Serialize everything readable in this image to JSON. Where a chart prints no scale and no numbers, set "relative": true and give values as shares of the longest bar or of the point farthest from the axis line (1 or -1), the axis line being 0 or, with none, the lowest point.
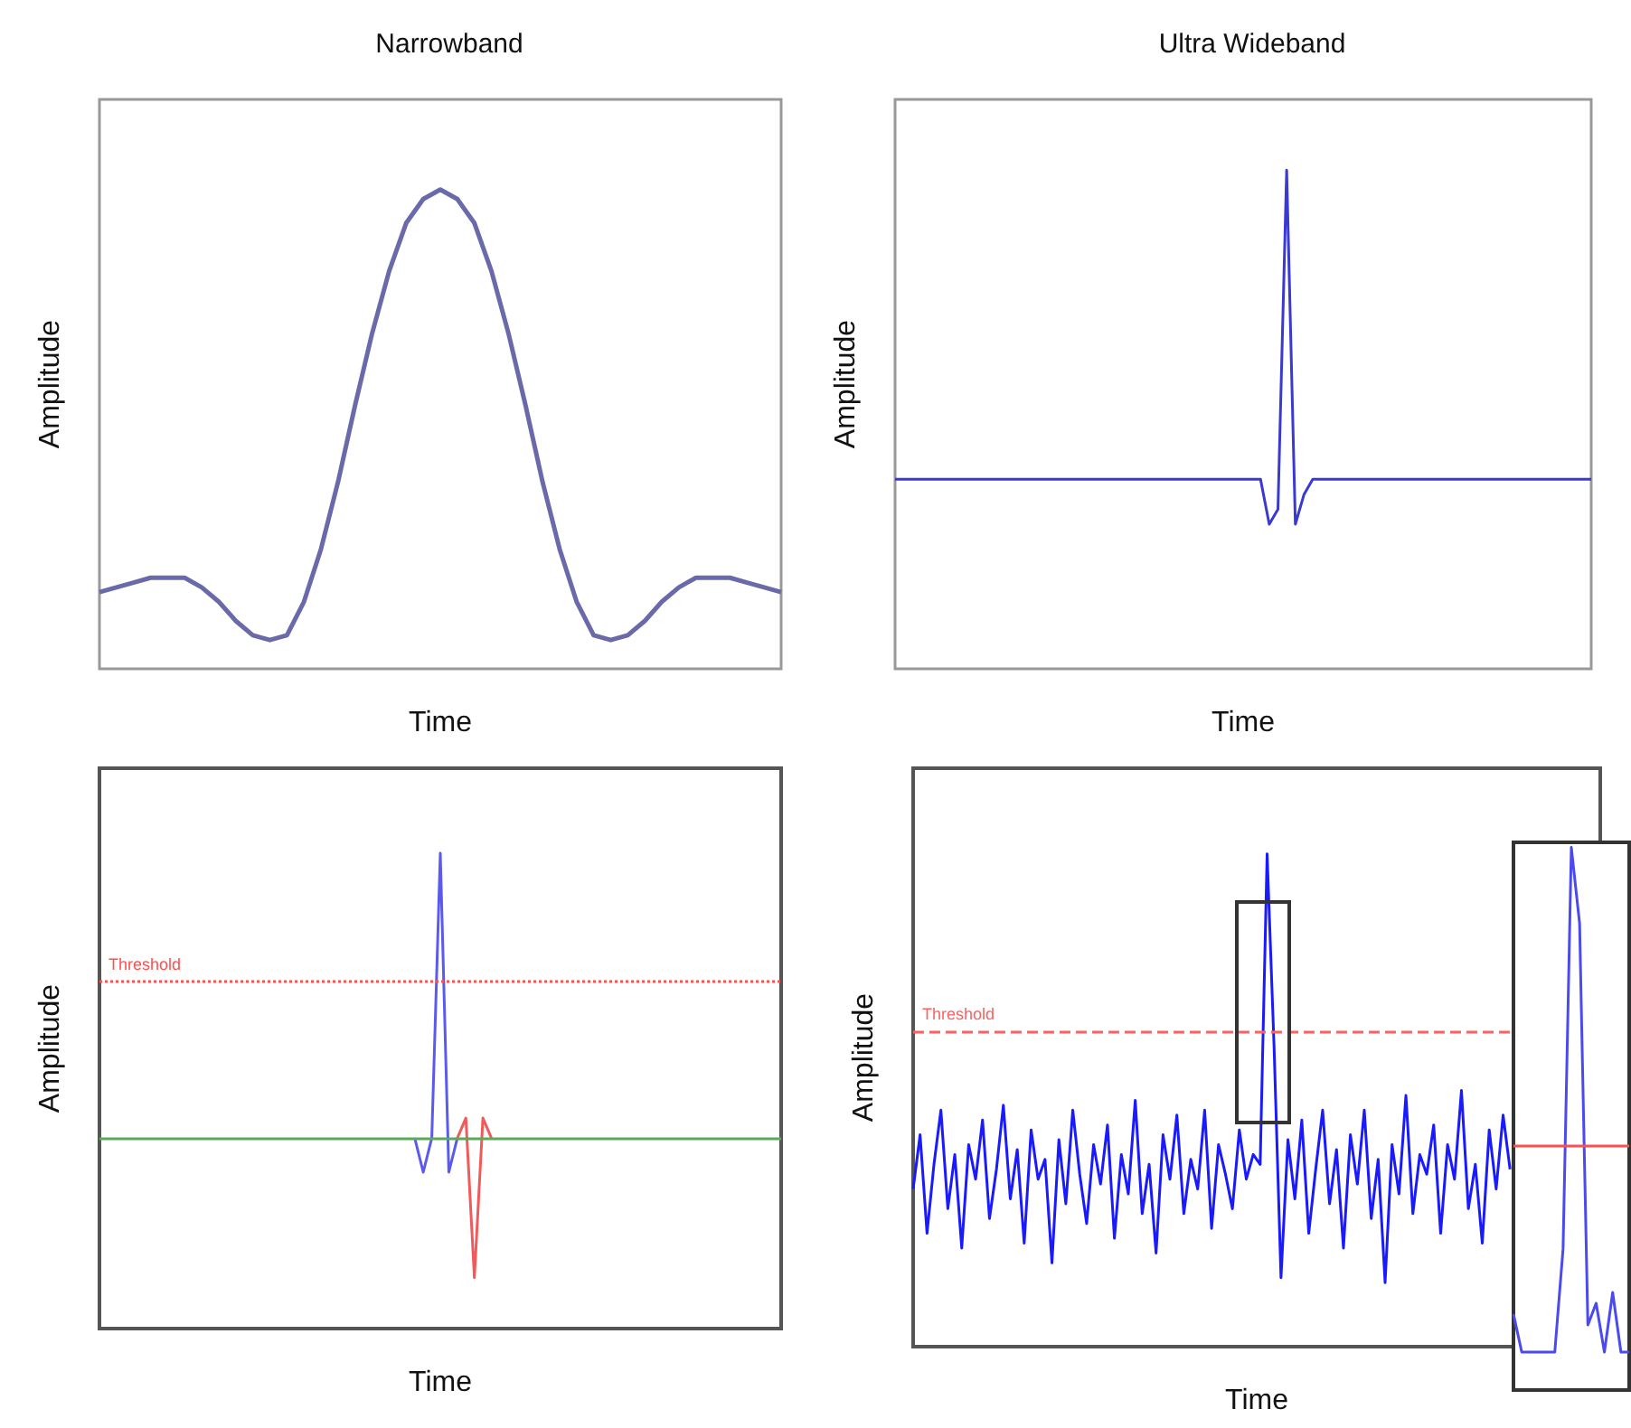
{
  "chart_data": [
    {
      "type": "line",
      "title": "Narrowband",
      "xlabel": "Time",
      "ylabel": "Amplitude",
      "relative": true,
      "categories": [
        null,
        null,
        null,
        null,
        null,
        null,
        null,
        null,
        null,
        null,
        null,
        null,
        null,
        null,
        null,
        null,
        null,
        null,
        null,
        null,
        null,
        null,
        null,
        null,
        null,
        null,
        null,
        null,
        null,
        null,
        null,
        null,
        null,
        null,
        null,
        null,
        null,
        null,
        null,
        null,
        null
      ],
      "series": [
        {
          "color": "#6a6aaa",
          "values": [
            0.16,
            0.17,
            0.18,
            0.19,
            0.19,
            0.19,
            0.17,
            0.14,
            0.1,
            0.07,
            0.06,
            0.07,
            0.14,
            0.25,
            0.39,
            0.55,
            0.7,
            0.83,
            0.93,
            0.98,
            1.0,
            0.98,
            0.93,
            0.83,
            0.7,
            0.55,
            0.39,
            0.25,
            0.14,
            0.07,
            0.06,
            0.07,
            0.1,
            0.14,
            0.17,
            0.19,
            0.19,
            0.19,
            0.18,
            0.17,
            0.16
          ]
        }
      ]
    },
    {
      "type": "line",
      "title": "Ultra Wideband",
      "xlabel": "Time",
      "ylabel": "Amplitude",
      "relative": true,
      "categories": [
        null,
        null,
        null,
        null,
        null,
        null,
        null,
        null,
        null,
        null,
        null,
        null,
        null,
        null,
        null,
        null,
        null,
        null,
        null,
        null,
        null,
        null,
        null,
        null,
        null,
        null,
        null,
        null,
        null,
        null,
        null,
        null,
        null,
        null,
        null,
        null,
        null,
        null,
        null,
        null,
        null,
        null,
        null,
        null,
        null,
        null,
        null,
        null,
        null,
        null,
        null,
        null,
        null,
        null,
        null,
        null,
        null,
        null,
        null,
        null,
        null,
        null,
        null,
        null,
        null,
        null,
        null,
        null,
        null,
        null,
        null,
        null,
        null,
        null,
        null,
        null,
        null,
        null,
        null,
        null,
        null
      ],
      "series": [
        {
          "color": "#3a3ad0",
          "values": [
            0.38,
            0.38,
            0.38,
            0.38,
            0.38,
            0.38,
            0.38,
            0.38,
            0.38,
            0.38,
            0.38,
            0.38,
            0.38,
            0.38,
            0.38,
            0.38,
            0.38,
            0.38,
            0.38,
            0.38,
            0.38,
            0.38,
            0.38,
            0.38,
            0.38,
            0.38,
            0.38,
            0.38,
            0.38,
            0.38,
            0.38,
            0.38,
            0.38,
            0.38,
            0.38,
            0.38,
            0.38,
            0.38,
            0.38,
            0.38,
            0.38,
            0.38,
            0.38,
            0.29,
            0.32,
            1.0,
            0.29,
            0.35,
            0.38,
            0.38,
            0.38,
            0.38,
            0.38,
            0.38,
            0.38,
            0.38,
            0.38,
            0.38,
            0.38,
            0.38,
            0.38,
            0.38,
            0.38,
            0.38,
            0.38,
            0.38,
            0.38,
            0.38,
            0.38,
            0.38,
            0.38,
            0.38,
            0.38,
            0.38,
            0.38,
            0.38,
            0.38,
            0.38,
            0.38,
            0.38,
            0.38
          ]
        }
      ]
    },
    {
      "type": "line",
      "xlabel": "Time",
      "ylabel": "Amplitude",
      "relative": true,
      "categories": [
        null,
        null,
        null,
        null,
        null,
        null,
        null,
        null,
        null,
        null,
        null,
        null,
        null,
        null,
        null,
        null,
        null,
        null,
        null,
        null,
        null,
        null,
        null,
        null,
        null,
        null,
        null,
        null,
        null,
        null,
        null,
        null,
        null,
        null,
        null,
        null,
        null,
        null,
        null,
        null,
        null,
        null,
        null,
        null,
        null,
        null,
        null,
        null,
        null,
        null,
        null,
        null,
        null,
        null,
        null,
        null,
        null,
        null,
        null,
        null,
        null,
        null,
        null,
        null,
        null,
        null,
        null,
        null,
        null,
        null,
        null,
        null,
        null,
        null,
        null,
        null,
        null,
        null,
        null,
        null,
        null
      ],
      "series": [
        {
          "color": "#5a5af0",
          "values": [
            null,
            null,
            null,
            null,
            null,
            null,
            null,
            null,
            null,
            null,
            null,
            null,
            null,
            null,
            null,
            null,
            null,
            null,
            null,
            null,
            null,
            null,
            null,
            null,
            null,
            null,
            null,
            null,
            null,
            null,
            null,
            null,
            null,
            null,
            null,
            null,
            null,
            0,
            -0.12,
            0,
            1.0,
            -0.12,
            0,
            null,
            null,
            null,
            null,
            null,
            null,
            null,
            null,
            null,
            null,
            null,
            null,
            null,
            null,
            null,
            null,
            null,
            null,
            null,
            null,
            null,
            null,
            null,
            null,
            null,
            null,
            null,
            null,
            null,
            null,
            null,
            null,
            null,
            null,
            null,
            null,
            null,
            null
          ]
        },
        {
          "color": "#f05a5a",
          "values": [
            null,
            null,
            null,
            null,
            null,
            null,
            null,
            null,
            null,
            null,
            null,
            null,
            null,
            null,
            null,
            null,
            null,
            null,
            null,
            null,
            null,
            null,
            null,
            null,
            null,
            null,
            null,
            null,
            null,
            null,
            null,
            null,
            null,
            null,
            null,
            null,
            null,
            null,
            null,
            null,
            null,
            null,
            0,
            0.07,
            -0.49,
            0.07,
            0,
            null,
            null,
            null,
            null,
            null,
            null,
            null,
            null,
            null,
            null,
            null,
            null,
            null,
            null,
            null,
            null,
            null,
            null,
            null,
            null,
            null,
            null,
            null,
            null,
            null,
            null,
            null,
            null,
            null,
            null,
            null,
            null,
            null,
            null
          ]
        }
      ],
      "ref_lines": [
        {
          "axis": "y",
          "value": 0.55,
          "label": "Threshold",
          "color": "#ff5050",
          "line_style": "dotted"
        },
        {
          "axis": "y",
          "value": 0,
          "color": "#5aaa5a",
          "line_style": "solid"
        }
      ]
    },
    {
      "type": "line",
      "xlabel": "Time",
      "ylabel": "Amplitude",
      "relative": true,
      "categories": [
        null,
        null,
        null,
        null,
        null,
        null,
        null,
        null,
        null,
        null,
        null,
        null,
        null,
        null,
        null,
        null,
        null,
        null,
        null,
        null,
        null,
        null,
        null,
        null,
        null,
        null,
        null,
        null,
        null,
        null,
        null,
        null,
        null,
        null,
        null,
        null,
        null,
        null,
        null,
        null,
        null,
        null,
        null,
        null,
        null,
        null,
        null,
        null,
        null,
        null,
        null,
        null,
        null,
        null,
        null,
        null,
        null,
        null,
        null,
        null,
        null,
        null,
        null,
        null,
        null,
        null,
        null,
        null,
        null,
        null,
        null,
        null,
        null,
        null,
        null,
        null,
        null,
        null,
        null,
        null,
        null,
        null,
        null,
        null,
        null,
        null,
        null,
        null,
        null,
        null,
        null,
        null,
        null,
        null,
        null,
        null,
        null,
        null,
        null,
        null
      ],
      "series": [
        {
          "color": "#1a1aff",
          "values": [
            0.32,
            0.43,
            0.23,
            0.37,
            0.48,
            0.28,
            0.39,
            0.2,
            0.41,
            0.34,
            0.46,
            0.26,
            0.36,
            0.49,
            0.3,
            0.4,
            0.21,
            0.44,
            0.34,
            0.38,
            0.17,
            0.42,
            0.29,
            0.48,
            0.35,
            0.25,
            0.41,
            0.33,
            0.45,
            0.22,
            0.39,
            0.31,
            0.5,
            0.27,
            0.37,
            0.19,
            0.43,
            0.34,
            0.47,
            0.27,
            0.38,
            0.32,
            0.48,
            0.24,
            0.41,
            0.35,
            0.28,
            0.44,
            0.34,
            0.39,
            0.37,
            1.0,
            0.61,
            0.14,
            0.42,
            0.3,
            0.46,
            0.23,
            0.36,
            0.48,
            0.29,
            0.4,
            0.2,
            0.43,
            0.33,
            0.48,
            0.26,
            0.38,
            0.13,
            0.41,
            0.31,
            0.51,
            0.27,
            0.39,
            0.35,
            0.45,
            0.23,
            0.41,
            0.34,
            0.52,
            0.28,
            0.37,
            0.21,
            0.44,
            0.32,
            0.47,
            0.36,
            null,
            null,
            null,
            null,
            null,
            null,
            null,
            null,
            null,
            null,
            null,
            null,
            null
          ]
        }
      ],
      "ref_lines": [
        {
          "axis": "y",
          "value": 0.64,
          "label": "Threshold",
          "color": "#ff6060",
          "line_style": "dashed"
        }
      ]
    },
    {
      "type": "line",
      "relative": true,
      "categories": [
        null,
        null,
        null,
        null,
        null,
        null,
        null,
        null,
        null,
        null,
        null,
        null,
        null,
        null,
        null
      ],
      "series": [
        {
          "color": "#4a4af0",
          "values": [
            0.14,
            0.07,
            0.07,
            0.07,
            0.07,
            0.07,
            0.26,
            1.0,
            0.86,
            0.12,
            0.16,
            0.07,
            0.18,
            0.07,
            0.07
          ]
        }
      ],
      "ref_lines": [
        {
          "axis": "y",
          "value": 0.45,
          "color": "#ff5050",
          "line_style": "solid"
        }
      ]
    }
  ]
}
